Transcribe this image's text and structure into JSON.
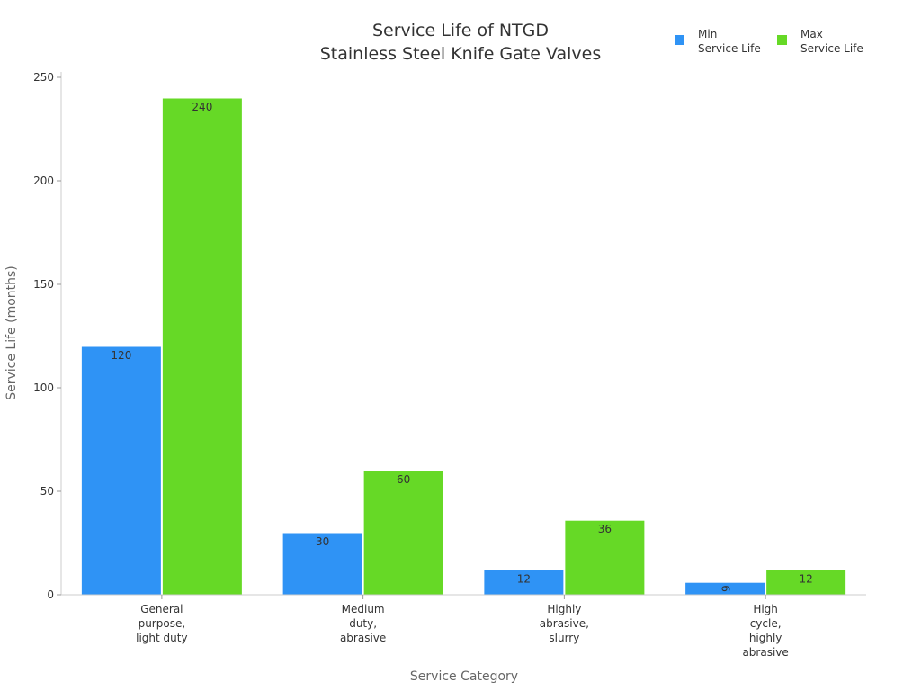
{
  "chart_data": {
    "type": "bar",
    "title": [
      "Service Life of NTGD",
      "Stainless Steel Knife Gate Valves"
    ],
    "xlabel": "Service Category",
    "ylabel": "Service Life (months)",
    "ylim": [
      0,
      250
    ],
    "yticks": [
      0,
      50,
      100,
      150,
      200,
      250
    ],
    "grid": false,
    "legend_position": "top-right",
    "categories": [
      [
        "General",
        "purpose,",
        "light duty"
      ],
      [
        "Medium",
        "duty,",
        "abrasive"
      ],
      [
        "Highly",
        "abrasive,",
        "slurry"
      ],
      [
        "High",
        "cycle,",
        "highly",
        "abrasive"
      ]
    ],
    "series": [
      {
        "name": [
          "Min",
          "Service Life"
        ],
        "color": "#2f93f5",
        "values": [
          120,
          30,
          12,
          6
        ]
      },
      {
        "name": [
          "Max",
          "Service Life"
        ],
        "color": "#66d926",
        "values": [
          240,
          60,
          36,
          12
        ]
      }
    ]
  }
}
